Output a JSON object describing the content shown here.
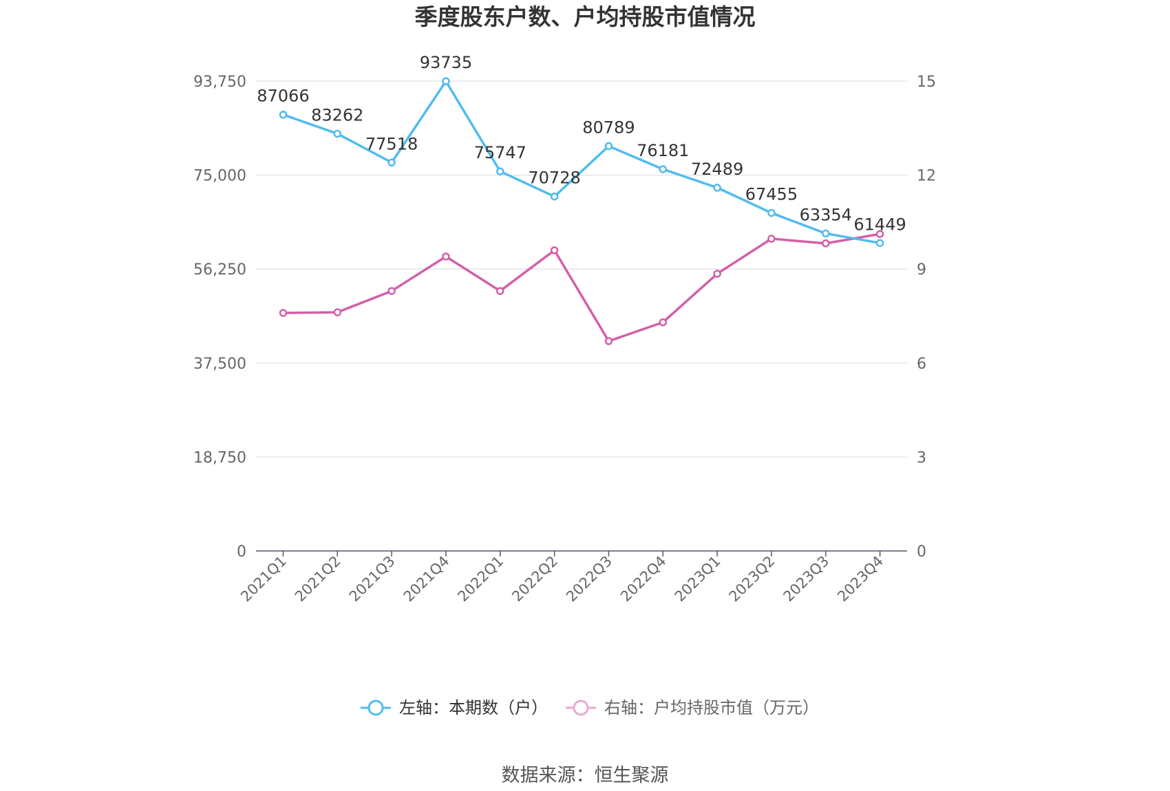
{
  "chart_data": {
    "type": "line",
    "title": "季度股东户数、户均持股市值情况",
    "categories": [
      "2021Q1",
      "2021Q2",
      "2021Q3",
      "2021Q4",
      "2022Q1",
      "2022Q2",
      "2022Q3",
      "2022Q4",
      "2023Q1",
      "2023Q2",
      "2023Q3",
      "2023Q4"
    ],
    "left_axis": {
      "min": 0,
      "max": 93750,
      "ticks": [
        "0",
        "18,750",
        "37,500",
        "56,250",
        "75,000",
        "93,750"
      ]
    },
    "right_axis": {
      "min": 0,
      "max": 15,
      "ticks": [
        "0",
        "3",
        "6",
        "9",
        "12",
        "15"
      ]
    },
    "series": [
      {
        "name": "左轴：本期数（户）",
        "axis": "left",
        "color": "#4fbcf0",
        "values": [
          87066,
          83262,
          77518,
          93735,
          75747,
          70728,
          80789,
          76181,
          72489,
          67455,
          63354,
          61449
        ],
        "labels": [
          "87066",
          "83262",
          "77518",
          "93735",
          "75747",
          "70728",
          "80789",
          "76181",
          "72489",
          "67455",
          "63354",
          "61449"
        ]
      },
      {
        "name": "右轴：户均持股市值（万元）",
        "axis": "right",
        "color": "#d35fa8",
        "values": [
          7.6,
          7.62,
          8.3,
          9.4,
          8.3,
          9.6,
          6.7,
          7.3,
          8.85,
          9.97,
          9.82,
          10.12
        ]
      }
    ],
    "legend_placement": "bottom",
    "grid": true
  },
  "footer": {
    "source": "数据来源：恒生聚源"
  }
}
